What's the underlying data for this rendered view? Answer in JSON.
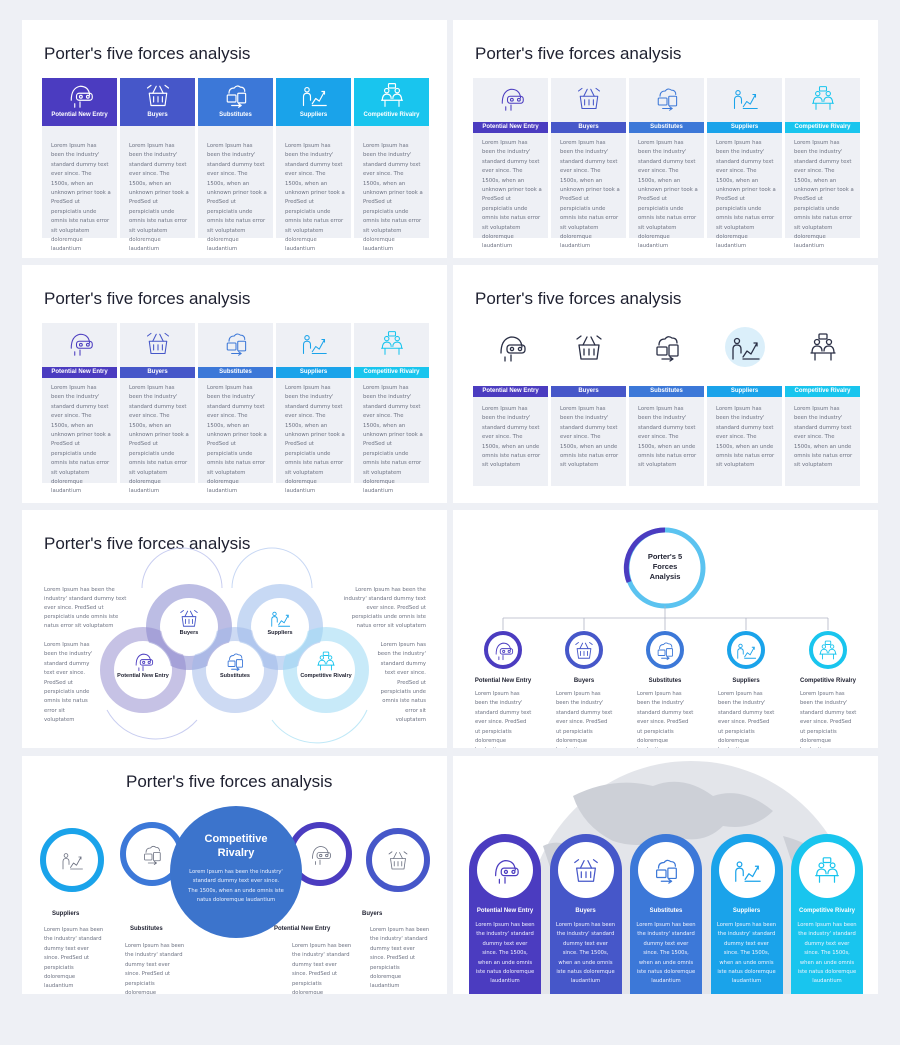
{
  "title": "Porter's five forces analysis",
  "center_title": "Porter's 5 Forces Analysis",
  "forces": [
    {
      "label": "Potential New Entry",
      "icon": "vr-headset-icon",
      "color": "#4b3cc0"
    },
    {
      "label": "Buyers",
      "icon": "shopping-basket-icon",
      "color": "#4657c9"
    },
    {
      "label": "Substitutes",
      "icon": "swap-icon",
      "color": "#3c78d8"
    },
    {
      "label": "Suppliers",
      "icon": "supplier-chart-icon",
      "color": "#1aa3ea"
    },
    {
      "label": "Competitive Rivalry",
      "icon": "team-meeting-icon",
      "color": "#19c5ee"
    }
  ],
  "lorem_long": "Lorem Ipsum has been the industry' standard dummy text ever since. The 1500s, when an unknown priner took a PredSed ut perspiciatis unde omnis iste natus error sit voluptatem doloremque laudantium",
  "lorem_medium": "Lorem Ipsum has been the industry' standard dummy text ever since. The 1500s, when an unde omnis iste natus error sit voluptatem",
  "lorem_short": "Lorem Ipsum has been the industry' standard dummy text ever since. PredSed ut perspiciatis unde omnis iste natus error sit voluptatem",
  "lorem_tall": "Lorem Ipsum has been the industry' standard dummy text ever since. PredSed ut perspiciatis unde omnis iste natus error sit voluptatem",
  "lorem_small": "Lorem Ipsum has been the industry' standard dummy text ever since. PredSed ut perspiciatis doloremque laudantium",
  "lorem_card": "Lorem Ipsum has been the industry' standard dummy text ever since. The 1500s, when an unde omnis iste natus doloremque laudantium",
  "big_circle": {
    "title": "Competitive Rivalry",
    "text": "Lorem Ipsum has been the industry' standard dummy text ever since. The 1500s, when an unde omnis iste natus doloremque laudantium"
  }
}
